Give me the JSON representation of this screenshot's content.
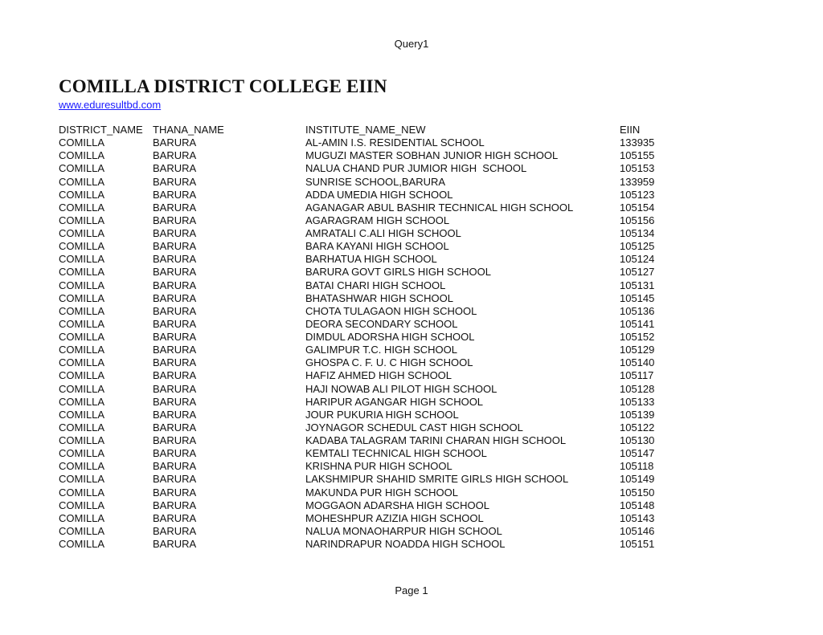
{
  "header": {
    "text": "Query1"
  },
  "title": "COMILLA DISTRICT COLLEGE EIIN",
  "link": "www.eduresultbd.com",
  "table": {
    "columns": [
      "DISTRICT_NAME",
      "THANA_NAME",
      "INSTITUTE_NAME_NEW",
      "EIIN"
    ],
    "rows": [
      [
        "COMILLA",
        "BARURA",
        "AL-AMIN I.S. RESIDENTIAL SCHOOL",
        "133935"
      ],
      [
        "COMILLA",
        "BARURA",
        "MUGUZI MASTER SOBHAN JUNIOR HIGH SCHOOL",
        "105155"
      ],
      [
        "COMILLA",
        "BARURA",
        "NALUA CHAND PUR JUMIOR HIGH  SCHOOL",
        "105153"
      ],
      [
        "COMILLA",
        "BARURA",
        "SUNRISE SCHOOL,BARURA",
        "133959"
      ],
      [
        "COMILLA",
        "BARURA",
        "ADDA UMEDIA HIGH SCHOOL",
        "105123"
      ],
      [
        "COMILLA",
        "BARURA",
        "AGANAGAR ABUL BASHIR TECHNICAL HIGH SCHOOL",
        "105154"
      ],
      [
        "COMILLA",
        "BARURA",
        "AGARAGRAM HIGH SCHOOL",
        "105156"
      ],
      [
        "COMILLA",
        "BARURA",
        "AMRATALI C.ALI HIGH SCHOOL",
        "105134"
      ],
      [
        "COMILLA",
        "BARURA",
        "BARA KAYANI HIGH SCHOOL",
        "105125"
      ],
      [
        "COMILLA",
        "BARURA",
        "BARHATUA HIGH SCHOOL",
        "105124"
      ],
      [
        "COMILLA",
        "BARURA",
        "BARURA GOVT GIRLS HIGH SCHOOL",
        "105127"
      ],
      [
        "COMILLA",
        "BARURA",
        "BATAI CHARI HIGH SCHOOL",
        "105131"
      ],
      [
        "COMILLA",
        "BARURA",
        "BHATASHWAR HIGH SCHOOL",
        "105145"
      ],
      [
        "COMILLA",
        "BARURA",
        "CHOTA TULAGAON HIGH SCHOOL",
        "105136"
      ],
      [
        "COMILLA",
        "BARURA",
        "DEORA SECONDARY SCHOOL",
        "105141"
      ],
      [
        "COMILLA",
        "BARURA",
        "DIMDUL ADORSHA HIGH SCHOOL",
        "105152"
      ],
      [
        "COMILLA",
        "BARURA",
        "GALIMPUR T.C. HIGH SCHOOL",
        "105129"
      ],
      [
        "COMILLA",
        "BARURA",
        "GHOSPA C. F. U. C HIGH SCHOOL",
        "105140"
      ],
      [
        "COMILLA",
        "BARURA",
        "HAFIZ AHMED HIGH SCHOOL",
        "105117"
      ],
      [
        "COMILLA",
        "BARURA",
        "HAJI NOWAB ALI PILOT HIGH SCHOOL",
        "105128"
      ],
      [
        "COMILLA",
        "BARURA",
        "HARIPUR AGANGAR HIGH SCHOOL",
        "105133"
      ],
      [
        "COMILLA",
        "BARURA",
        "JOUR PUKURIA HIGH SCHOOL",
        "105139"
      ],
      [
        "COMILLA",
        "BARURA",
        "JOYNAGOR SCHEDUL CAST HIGH SCHOOL",
        "105122"
      ],
      [
        "COMILLA",
        "BARURA",
        "KADABA TALAGRAM TARINI CHARAN HIGH SCHOOL",
        "105130"
      ],
      [
        "COMILLA",
        "BARURA",
        "KEMTALI TECHNICAL HIGH SCHOOL",
        "105147"
      ],
      [
        "COMILLA",
        "BARURA",
        "KRISHNA PUR HIGH SCHOOL",
        "105118"
      ],
      [
        "COMILLA",
        "BARURA",
        "LAKSHMIPUR SHAHID SMRITE GIRLS HIGH SCHOOL",
        "105149"
      ],
      [
        "COMILLA",
        "BARURA",
        "MAKUNDA PUR HIGH SCHOOL",
        "105150"
      ],
      [
        "COMILLA",
        "BARURA",
        "MOGGAON ADARSHA HIGH SCHOOL",
        "105148"
      ],
      [
        "COMILLA",
        "BARURA",
        "MOHESHPUR AZIZIA HIGH SCHOOL",
        "105143"
      ],
      [
        "COMILLA",
        "BARURA",
        "NALUA MONAOHARPUR HIGH SCHOOL",
        "105146"
      ],
      [
        "COMILLA",
        "BARURA",
        "NARINDRAPUR NOADDA HIGH SCHOOL",
        "105151"
      ]
    ]
  },
  "footer": {
    "page": "Page 1"
  }
}
